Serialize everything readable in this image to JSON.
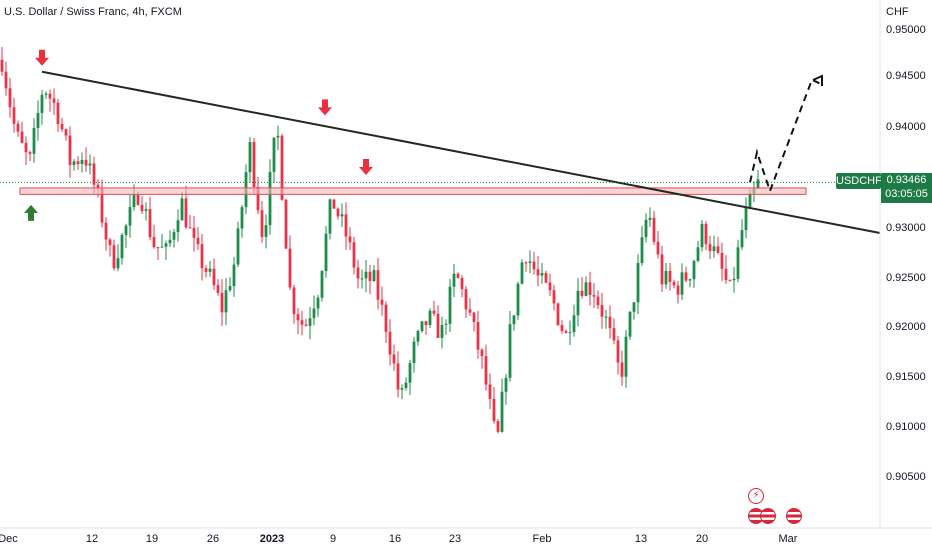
{
  "header": {
    "title": "U.S. Dollar / Swiss Franc, 4h, FXCM"
  },
  "price_axis": {
    "unit": "CHF",
    "labels": [
      "0.95000",
      "0.94500",
      "0.94000",
      "0.93500",
      "0.93000",
      "0.92500",
      "0.92000",
      "0.91500",
      "0.91000",
      "0.90500"
    ]
  },
  "date_axis": {
    "labels": [
      "Dec",
      "12",
      "19",
      "26",
      "2023",
      "9",
      "16",
      "23",
      "Feb",
      "13",
      "20",
      "Mar"
    ]
  },
  "symbol_badge": {
    "symbol": "USDCHF",
    "price": "0.93466",
    "countdown": "03:05:05"
  },
  "events": {
    "flash_icon": "lightning-icon",
    "flag_icons": [
      "us-flag-icon",
      "us-flag-icon",
      "us-flag-icon"
    ]
  },
  "colors": {
    "up": "#26a69a",
    "down": "#ef5350",
    "bull_candle": "#1e8c4a",
    "bear_candle": "#e8344a",
    "trendline": "#1f2a1f",
    "zone_fill": "#f4b8bd",
    "zone_border": "#e34b55",
    "badge": "#1e7b45"
  },
  "chart_data": {
    "type": "candlestick",
    "title": "U.S. Dollar / Swiss Franc, 4h, FXCM",
    "y_unit": "CHF",
    "ylim": [
      0.902,
      0.952
    ],
    "y_ticks": [
      0.95,
      0.945,
      0.94,
      0.935,
      0.93,
      0.925,
      0.92,
      0.915,
      0.91,
      0.905
    ],
    "x_ticks": [
      "Dec",
      "12",
      "19",
      "26",
      "2023",
      "9",
      "16",
      "23",
      "Feb",
      "13",
      "20",
      "Mar"
    ],
    "last_price": 0.93466,
    "close_path": [
      0.947,
      0.9395,
      0.9365,
      0.9445,
      0.942,
      0.9365,
      0.9375,
      0.933,
      0.9265,
      0.93,
      0.934,
      0.9285,
      0.9275,
      0.933,
      0.928,
      0.9255,
      0.922,
      0.927,
      0.9385,
      0.929,
      0.9405,
      0.923,
      0.92,
      0.924,
      0.933,
      0.9295,
      0.9245,
      0.925,
      0.92,
      0.9125,
      0.918,
      0.921,
      0.9195,
      0.9255,
      0.9215,
      0.916,
      0.908,
      0.92,
      0.928,
      0.925,
      0.923,
      0.919,
      0.9245,
      0.924,
      0.9205,
      0.915,
      0.9235,
      0.932,
      0.925,
      0.924,
      0.9255,
      0.93,
      0.927,
      0.9235,
      0.931,
      0.9345
    ],
    "trendline": [
      {
        "date": "Dec 6",
        "price": 0.9458
      },
      {
        "date": "Feb 28",
        "price": 0.931
      }
    ],
    "support_zone": [
      0.93345,
      0.9341
    ],
    "projection": [
      0.93466,
      0.9377,
      0.9338,
      0.945,
      0.9445
    ],
    "markers": [
      {
        "type": "arrow-down",
        "price": 0.9462
      },
      {
        "type": "arrow-down",
        "price": 0.9412
      },
      {
        "type": "arrow-down",
        "price": 0.9352
      },
      {
        "type": "arrow-up",
        "price": 0.9326
      }
    ]
  }
}
